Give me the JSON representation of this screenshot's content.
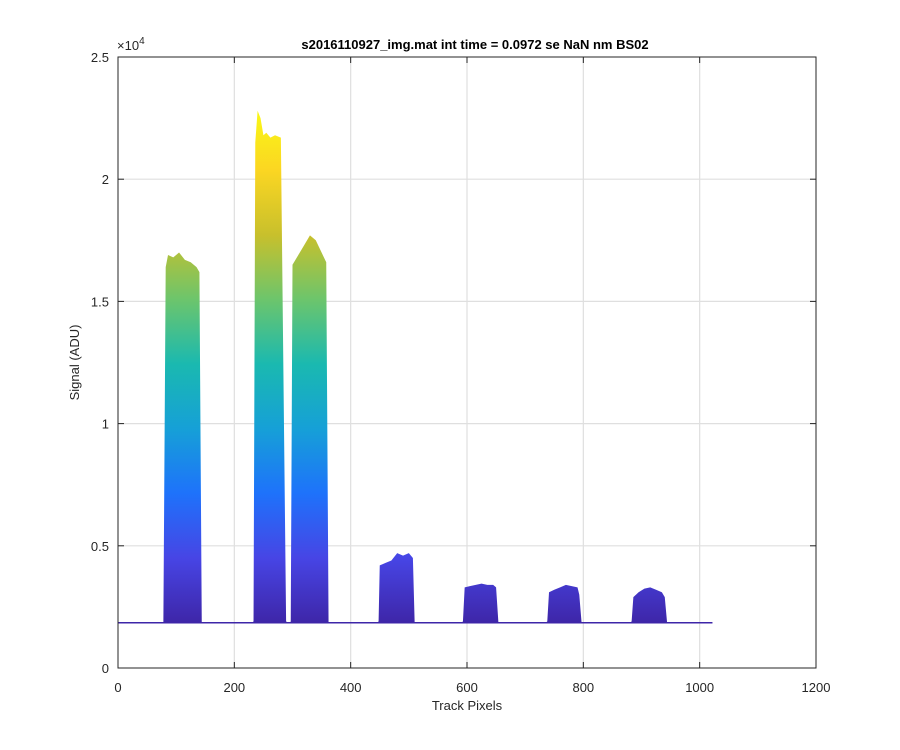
{
  "chart_data": {
    "type": "area",
    "title": "s2016110927_img.mat int time = 0.0972 se  NaN nm BS02",
    "xlabel": "Track Pixels",
    "ylabel": "Signal (ADU)",
    "exponent_label": "×10",
    "exponent_power": "4",
    "xlim": [
      0,
      1200
    ],
    "ylim": [
      0,
      25000
    ],
    "x_ticks": [
      0,
      200,
      400,
      600,
      800,
      1000,
      1200
    ],
    "x_tick_labels": [
      "0",
      "200",
      "400",
      "600",
      "800",
      "1000",
      "1200"
    ],
    "y_ticks": [
      0,
      5000,
      10000,
      15000,
      20000,
      25000
    ],
    "y_tick_labels": [
      "0",
      "0.5",
      "1",
      "1.5",
      "2",
      "2.5"
    ],
    "grid": true,
    "baseline": 1850,
    "x_extent": [
      0,
      1022
    ],
    "colormap": [
      "#3e26a8",
      "#4745e5",
      "#1e72fb",
      "#16a0d7",
      "#1ab9b0",
      "#6cc56c",
      "#c8c02c",
      "#fbd622",
      "#f9fb15"
    ],
    "color_range": [
      1850,
      23000
    ],
    "series": [
      {
        "x": [
          0,
          78,
          82,
          86,
          95,
          105,
          115,
          125,
          135,
          140,
          144,
          148,
          1022
        ],
        "y": [
          1850,
          1850,
          16400,
          16900,
          16800,
          17000,
          16700,
          16600,
          16400,
          16200,
          1850,
          1850,
          1850
        ]
      },
      {
        "x": [
          230,
          233,
          236,
          240,
          245,
          250,
          255,
          262,
          270,
          280,
          289,
          293
        ],
        "y": [
          1850,
          1900,
          21500,
          22800,
          22500,
          21800,
          21900,
          21700,
          21800,
          21700,
          1900,
          1850
        ]
      },
      {
        "x": [
          295,
          297,
          300,
          310,
          320,
          330,
          340,
          350,
          358,
          362
        ],
        "y": [
          1850,
          1900,
          16500,
          16900,
          17300,
          17700,
          17500,
          17000,
          16600,
          1850
        ]
      },
      {
        "x": [
          445,
          448,
          450,
          460,
          470,
          480,
          490,
          500,
          507,
          510
        ],
        "y": [
          1850,
          1900,
          4200,
          4300,
          4400,
          4700,
          4600,
          4700,
          4500,
          1850
        ]
      },
      {
        "x": [
          590,
          593,
          596,
          605,
          615,
          625,
          635,
          645,
          650,
          654
        ],
        "y": [
          1850,
          1900,
          3300,
          3350,
          3400,
          3450,
          3400,
          3400,
          3300,
          1850
        ]
      },
      {
        "x": [
          735,
          738,
          741,
          750,
          760,
          770,
          780,
          790,
          793,
          797
        ],
        "y": [
          1850,
          1900,
          3100,
          3200,
          3300,
          3400,
          3350,
          3300,
          3000,
          1850
        ]
      },
      {
        "x": [
          880,
          883,
          886,
          895,
          905,
          915,
          925,
          935,
          940,
          944
        ],
        "y": [
          1850,
          1900,
          2900,
          3100,
          3250,
          3300,
          3200,
          3100,
          2900,
          1850
        ]
      }
    ]
  }
}
